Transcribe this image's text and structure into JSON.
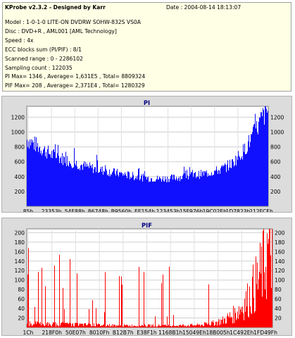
{
  "info": {
    "title": "KProbe v2.3.2 - Designed by Karr",
    "date": "Date : 2004-08-14 18:13:07",
    "model": "Model : 1-0-1-0 LITE-ON DVDRW SOHW-832S  VS0A",
    "disc": "Disc : DVD+R , AML001 [AML Technology]",
    "speed": "Speed : 4x",
    "ecc": "ECC blocks sum (PI/PIF) : 8/1",
    "range": "Scanned range : 0 - 2286102",
    "sampling": "Sampling count : 122035",
    "pi_stats": "PI Max= 1346 , Average= 1,631E5 , Total= 8809324",
    "pif_stats": "PIF Max= 208 , Average= 2,371E4 , Total= 1280329"
  },
  "colors": {
    "pi": "#1010ff",
    "pif": "#ff0000",
    "title": "#000080",
    "panel": "#dcdcdc"
  },
  "chart_data": [
    {
      "type": "bar",
      "title": "PI",
      "ylim": [
        0,
        1346
      ],
      "yticks": [
        200,
        400,
        600,
        800,
        1000,
        1200
      ],
      "xticks": [
        "85h",
        "23353h",
        "54E88h",
        "86748h",
        "B9560h",
        "EE154h",
        "123453h",
        "15F976h",
        "19C02Eh",
        "1D7823h",
        "212FCEh"
      ],
      "profile": {
        "x": [
          0,
          0.02,
          0.05,
          0.1,
          0.15,
          0.2,
          0.25,
          0.3,
          0.35,
          0.4,
          0.45,
          0.5,
          0.55,
          0.6,
          0.65,
          0.7,
          0.75,
          0.8,
          0.85,
          0.9,
          0.93,
          0.96,
          0.98,
          1.0
        ],
        "y": [
          900,
          860,
          800,
          700,
          640,
          580,
          530,
          490,
          460,
          430,
          400,
          380,
          370,
          380,
          400,
          420,
          450,
          490,
          580,
          760,
          920,
          1100,
          1230,
          1300
        ]
      },
      "max": 1346,
      "grid": true
    },
    {
      "type": "bar",
      "title": "PIF",
      "ylim": [
        0,
        208
      ],
      "yticks": [
        20,
        40,
        60,
        80,
        100,
        120,
        140,
        160,
        180,
        200
      ],
      "xticks": [
        "1Ch",
        "218F0h",
        "50E07h",
        "8010Fh",
        "B12B7h",
        "E38F1h",
        "1168B1h",
        "15049Eh",
        "18B005h",
        "1C492Eh",
        "1FD49Fh"
      ],
      "profile": {
        "x": [
          0,
          0.1,
          0.2,
          0.3,
          0.4,
          0.5,
          0.6,
          0.7,
          0.75,
          0.8,
          0.85,
          0.9,
          0.95,
          0.98,
          1.0
        ],
        "y": [
          8,
          7,
          6,
          5,
          4,
          4,
          4,
          5,
          8,
          15,
          30,
          60,
          110,
          160,
          185
        ]
      },
      "max": 208,
      "grid": true
    }
  ]
}
